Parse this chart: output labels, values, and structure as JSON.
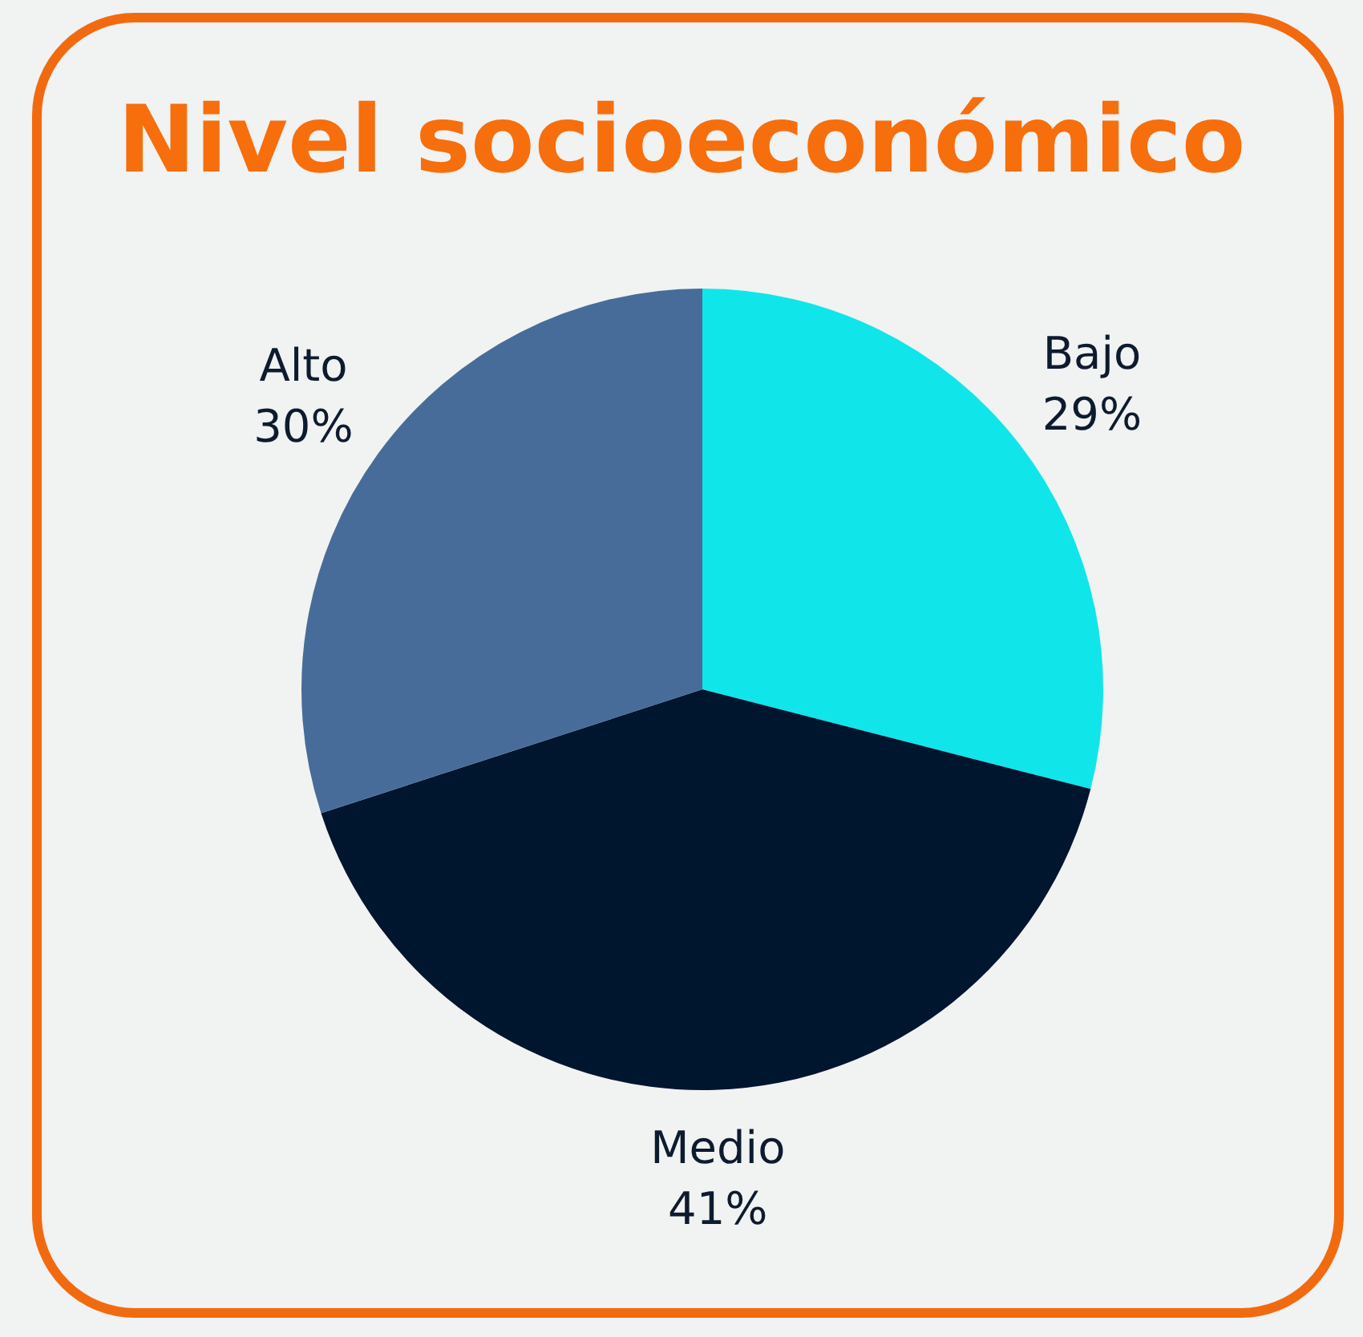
{
  "chart_data": {
    "type": "pie",
    "title": "Nivel socioeconómico",
    "categories": [
      "Bajo",
      "Medio",
      "Alto"
    ],
    "values": [
      29,
      41,
      30
    ],
    "colors": [
      "#10e6ea",
      "#00152e",
      "#476c99"
    ],
    "value_labels": [
      "29%",
      "41%",
      "30%"
    ]
  }
}
